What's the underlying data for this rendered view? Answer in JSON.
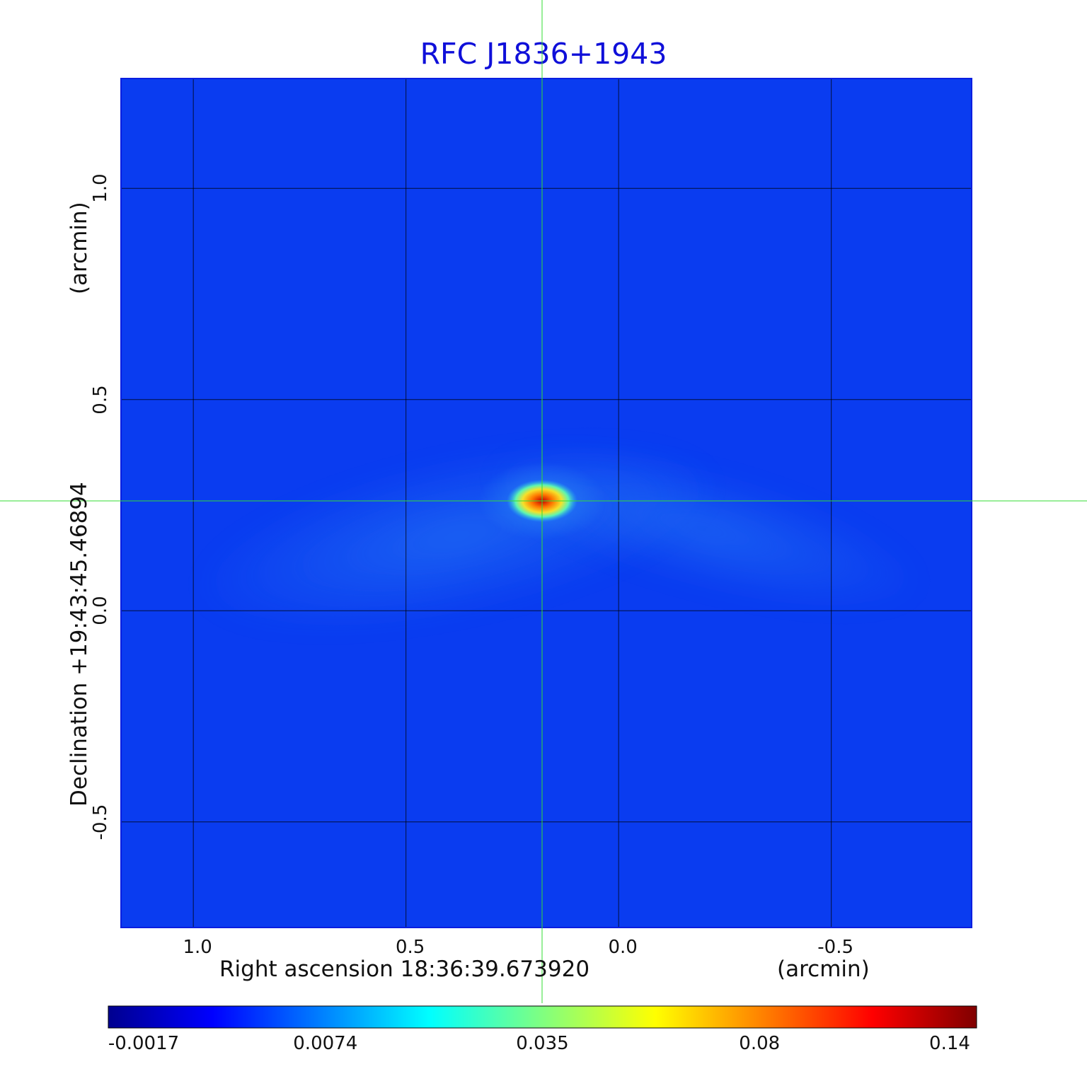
{
  "chart_data": {
    "type": "heatmap",
    "title": "RFC J1836+1943",
    "xlabel": "Right ascension  18:36:39.673920",
    "xunit": "(arcmin)",
    "ylabel": "Declination  +19:43:45.46894",
    "yunit": "(arcmin)",
    "xlim": [
      1.17,
      -0.83
    ],
    "ylim": [
      -0.75,
      1.26
    ],
    "x_ticks": [
      "1.0",
      "0.5",
      "0.0",
      "-0.5"
    ],
    "x_tick_values": [
      1.0,
      0.5,
      0.0,
      -0.5
    ],
    "y_ticks": [
      "1.0",
      "0.5",
      "0.0",
      "-0.5"
    ],
    "y_tick_values": [
      1.0,
      0.5,
      0.0,
      -0.5
    ],
    "grid": true,
    "crosshair": {
      "x": 0.18,
      "y": 0.26,
      "color": "#33dd33"
    },
    "peak": {
      "x": 0.18,
      "y": 0.26,
      "value": 0.14
    },
    "colorbar": {
      "colormap": "jet",
      "ticks": [
        "-0.0017",
        "0.0074",
        "0.035",
        "0.08",
        "0.14"
      ],
      "placement": "bottom"
    },
    "background_color": "#0a3cf0"
  }
}
